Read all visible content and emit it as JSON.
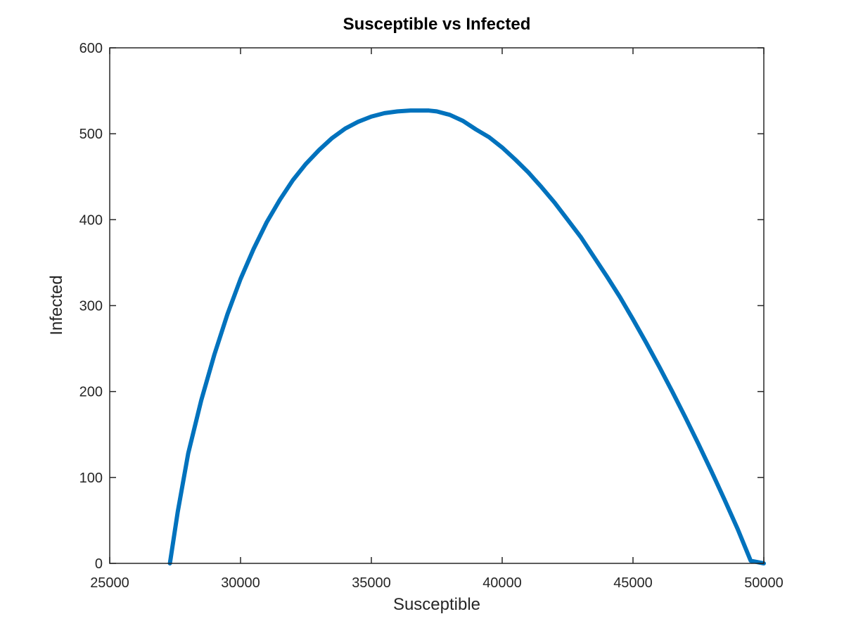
{
  "chart_data": {
    "type": "line",
    "title": "Susceptible vs Infected",
    "xlabel": "Susceptible",
    "ylabel": "Infected",
    "xlim": [
      25000,
      50000
    ],
    "ylim": [
      0,
      600
    ],
    "xticks": [
      25000,
      30000,
      35000,
      40000,
      45000,
      50000
    ],
    "yticks": [
      0,
      100,
      200,
      300,
      400,
      500,
      600
    ],
    "xtick_labels": [
      "25000",
      "30000",
      "35000",
      "40000",
      "45000",
      "50000"
    ],
    "ytick_labels": [
      "0",
      "100",
      "200",
      "300",
      "400",
      "500",
      "600"
    ],
    "grid": false,
    "box": true,
    "series": [
      {
        "color": "#0072BD",
        "x": [
          27300,
          27600,
          28000,
          28500,
          29000,
          29500,
          30000,
          30500,
          31000,
          31500,
          32000,
          32500,
          33000,
          33500,
          34000,
          34500,
          35000,
          35500,
          36000,
          36500,
          37000,
          37200,
          37500,
          38000,
          38500,
          39000,
          39500,
          40000,
          40500,
          41000,
          41500,
          42000,
          42500,
          43000,
          43500,
          44000,
          44500,
          45000,
          45500,
          46000,
          46500,
          47000,
          47500,
          48000,
          48500,
          49000,
          49500,
          50000
        ],
        "y": [
          0,
          60,
          128,
          190,
          243,
          290,
          331,
          366,
          397,
          423,
          446,
          465,
          481,
          495,
          506,
          514,
          520,
          524,
          526,
          527,
          527,
          527,
          526,
          522,
          515,
          505,
          496,
          484,
          470,
          455,
          438,
          420,
          400,
          380,
          357,
          334,
          310,
          284,
          257,
          229,
          200,
          170,
          139,
          107,
          74,
          40,
          3,
          0
        ]
      }
    ]
  }
}
